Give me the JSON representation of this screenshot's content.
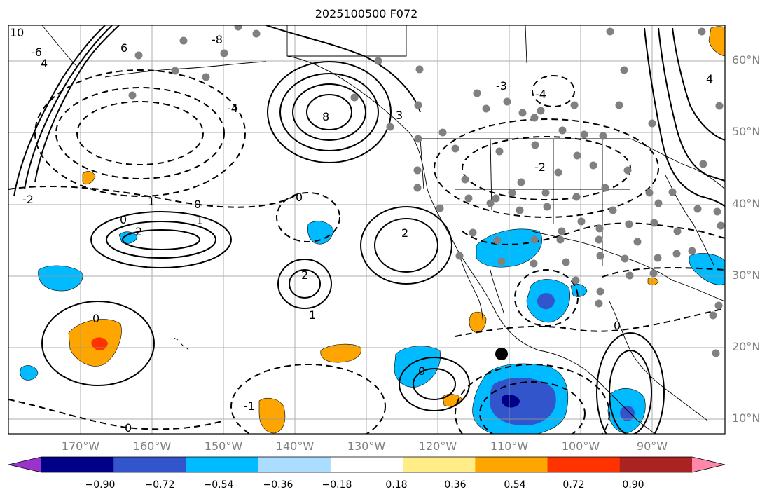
{
  "title": "2025100500 F072",
  "lat_labels": [
    "60°N",
    "50°N",
    "40°N",
    "30°N",
    "20°N",
    "10°N"
  ],
  "lon_labels": [
    "170°W",
    "160°W",
    "150°W",
    "140°W",
    "130°W",
    "120°W",
    "110°W",
    "100°W",
    "90°W"
  ],
  "contour_labels": [
    "10",
    "8",
    "6",
    "4",
    "3",
    "2",
    "1",
    "0",
    "-1",
    "-2",
    "-3",
    "-4",
    "-6",
    "-8"
  ],
  "colorbar": {
    "ticks": [
      "−0.90",
      "−0.72",
      "−0.54",
      "−0.36",
      "−0.18",
      "0.18",
      "0.36",
      "0.54",
      "0.72",
      "0.90"
    ],
    "colors": [
      "#9933cc",
      "#000088",
      "#3355cc",
      "#00bbff",
      "#aaddff",
      "#ffffff",
      "#ffee88",
      "#ffa500",
      "#ff3300",
      "#aa2222",
      "#ff88aa"
    ]
  },
  "colors": {
    "station": "#808080",
    "marker": "#000000",
    "grid": "#999999",
    "axis_label": "#808080"
  }
}
